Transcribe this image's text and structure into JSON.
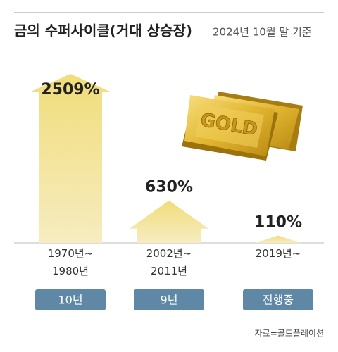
{
  "chart_data": {
    "type": "arrow-bar",
    "title": "금의 수퍼사이클(거대 상승장)",
    "subtitle": "2024년 10월 말 기준",
    "categories": [
      "1970년~\n1980년",
      "2002년~\n2011년",
      "2019년~"
    ],
    "values": [
      2509,
      630,
      110
    ],
    "value_labels": [
      "2509%",
      "630%",
      "110%"
    ],
    "durations": [
      "10년",
      "9년",
      "진행중"
    ],
    "illustration_label": "GOLD",
    "source": "자료=골드플레이션",
    "color": "#e3c75a",
    "pill_color": "#5f88a6"
  }
}
